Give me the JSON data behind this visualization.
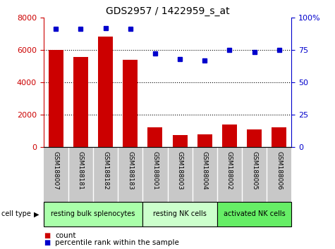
{
  "title": "GDS2957 / 1422959_s_at",
  "categories": [
    "GSM188007",
    "GSM188181",
    "GSM188182",
    "GSM188183",
    "GSM188001",
    "GSM188003",
    "GSM188004",
    "GSM188002",
    "GSM188005",
    "GSM188006"
  ],
  "bar_values": [
    6000,
    5550,
    6800,
    5400,
    1200,
    750,
    780,
    1380,
    1100,
    1200
  ],
  "dot_values": [
    91,
    91,
    92,
    91,
    72,
    68,
    67,
    75,
    73,
    75
  ],
  "bar_color": "#cc0000",
  "dot_color": "#0000cc",
  "ylim_left": [
    0,
    8000
  ],
  "ylim_right": [
    0,
    100
  ],
  "yticks_left": [
    0,
    2000,
    4000,
    6000,
    8000
  ],
  "yticks_right": [
    0,
    25,
    50,
    75,
    100
  ],
  "ytick_labels_right": [
    "0",
    "25",
    "50",
    "75",
    "100%"
  ],
  "grid_values": [
    2000,
    4000,
    6000
  ],
  "cell_type_groups": [
    {
      "label": "resting bulk splenocytes",
      "start": 0,
      "end": 3,
      "color": "#aaffaa"
    },
    {
      "label": "resting NK cells",
      "start": 4,
      "end": 6,
      "color": "#ccffcc"
    },
    {
      "label": "activated NK cells",
      "start": 7,
      "end": 9,
      "color": "#66ee66"
    }
  ],
  "cell_type_label": "cell type",
  "legend_count_label": "count",
  "legend_pct_label": "percentile rank within the sample",
  "tick_label_color_left": "#cc0000",
  "tick_label_color_right": "#0000cc",
  "bg_color": "#ffffff",
  "xticklabel_bg": "#c8c8c8"
}
